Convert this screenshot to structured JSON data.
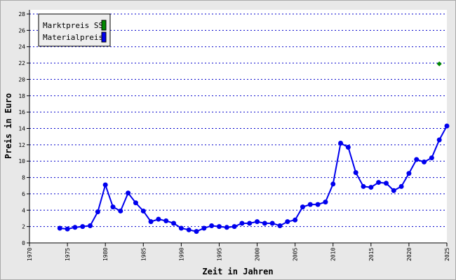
{
  "chart_data": {
    "type": "line",
    "x_label": "Zeit in Jahren",
    "y_label": "Preis in Euro",
    "x": [
      1974,
      1975,
      1976,
      1977,
      1978,
      1979,
      1980,
      1981,
      1982,
      1983,
      1984,
      1985,
      1986,
      1987,
      1988,
      1989,
      1990,
      1991,
      1992,
      1993,
      1994,
      1995,
      1996,
      1997,
      1998,
      1999,
      2000,
      2001,
      2002,
      2003,
      2004,
      2005,
      2006,
      2007,
      2008,
      2009,
      2010,
      2011,
      2012,
      2013,
      2014,
      2015,
      2016,
      2017,
      2018,
      2019,
      2020,
      2021,
      2022,
      2023,
      2024,
      2025
    ],
    "series": [
      {
        "name": "Marktpreis SS",
        "color": "#008800",
        "style": "marker",
        "values": [
          null,
          null,
          null,
          null,
          null,
          null,
          null,
          null,
          null,
          null,
          null,
          null,
          null,
          null,
          null,
          null,
          null,
          null,
          null,
          null,
          null,
          null,
          null,
          null,
          null,
          null,
          null,
          null,
          null,
          null,
          null,
          null,
          null,
          null,
          null,
          null,
          null,
          null,
          null,
          null,
          null,
          null,
          null,
          null,
          null,
          null,
          null,
          null,
          null,
          null,
          21.9,
          null
        ]
      },
      {
        "name": "Materialpreis",
        "color": "#0000ee",
        "style": "line",
        "values": [
          1.8,
          1.7,
          1.9,
          2.0,
          2.1,
          3.8,
          7.1,
          4.4,
          3.9,
          6.1,
          4.9,
          3.9,
          2.6,
          2.9,
          2.7,
          2.4,
          1.8,
          1.6,
          1.4,
          1.8,
          2.1,
          2.0,
          1.9,
          2.0,
          2.4,
          2.4,
          2.6,
          2.4,
          2.4,
          2.1,
          2.6,
          2.8,
          4.4,
          4.7,
          4.7,
          5.0,
          7.2,
          12.2,
          11.7,
          8.6,
          6.9,
          6.8,
          7.4,
          7.3,
          6.4,
          6.9,
          8.5,
          10.2,
          9.9,
          10.4,
          12.6,
          14.3
        ]
      }
    ],
    "xlim": [
      1970,
      2025
    ],
    "xticks": [
      1970,
      1975,
      1980,
      1985,
      1990,
      1995,
      2000,
      2005,
      2010,
      2015,
      2020,
      2025
    ],
    "ylim": [
      0,
      28
    ],
    "yticks": [
      0,
      2,
      4,
      6,
      8,
      10,
      12,
      14,
      16,
      18,
      20,
      22,
      24,
      26,
      28
    ],
    "grid": true,
    "legend_position": "upper-left"
  }
}
